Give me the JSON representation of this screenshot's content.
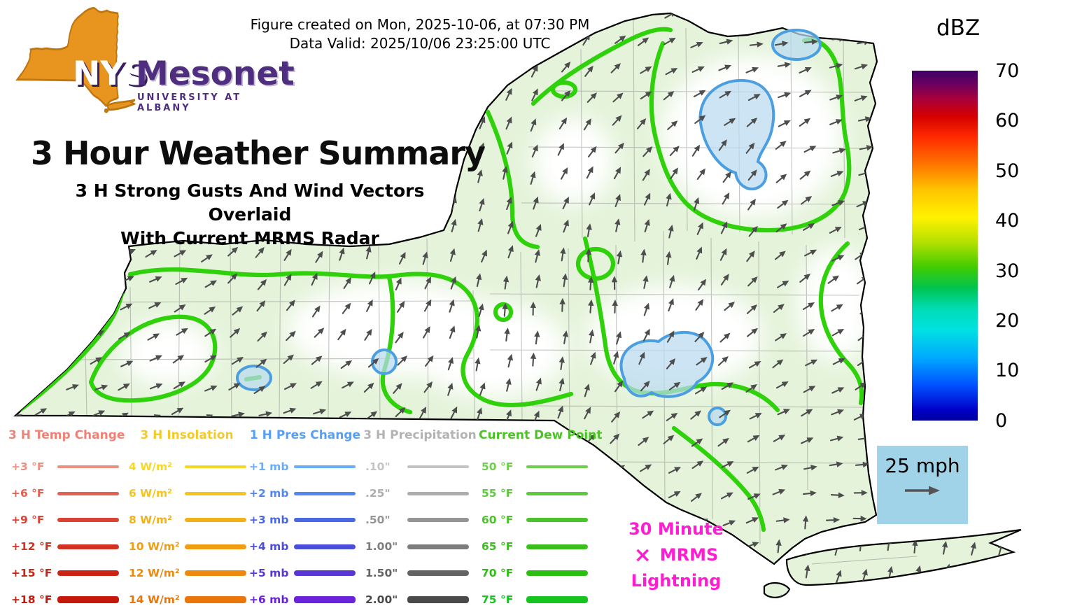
{
  "header": {
    "created": "Figure created on Mon, 2025-10-06, at 07:30 PM",
    "valid": "Data Valid: 2025/10/06 23:25:00 UTC"
  },
  "logo": {
    "acronym": "NYS",
    "acronym_color": "#ffffff",
    "name": "Mesonet",
    "affiliation": "UNIVERSITY AT ALBANY",
    "state_color": "#E8951F",
    "state_stroke": "#BE7710",
    "text_color": "#4F2D7F"
  },
  "titles": {
    "main": "3 Hour Weather Summary",
    "sub1": "3 H Strong Gusts And Wind Vectors Overlaid",
    "sub2": "With Current MRMS Radar"
  },
  "colorbar": {
    "label": "dBZ",
    "ticks": [
      "70",
      "60",
      "50",
      "40",
      "30",
      "20",
      "10",
      "0"
    ],
    "stops_top_to_bottom": [
      "#3d0066 0%",
      "#6e0060 4%",
      "#a8003c 8%",
      "#d40000 13%",
      "#ff2a00 19%",
      "#ff7700 27%",
      "#ffc400 34%",
      "#fff200 42%",
      "#b5e000 49%",
      "#44cc00 56%",
      "#00c44e 62%",
      "#00dcb4 68%",
      "#00e1e1 74%",
      "#00aaff 82%",
      "#0050ff 90%",
      "#0000c8 97%",
      "#0000a0 100%"
    ]
  },
  "wind_ref": {
    "label": "25 mph",
    "box_color": "#a0d2e8"
  },
  "lightning": {
    "line1": "30 Minute",
    "symbol": "×",
    "line2": "MRMS",
    "line3": "Lightning",
    "color": "#ff1dd1"
  },
  "legend": {
    "columns": [
      {
        "title": "3 H Temp Change",
        "title_color": "#EF8276",
        "items": [
          {
            "label": "+3 °F",
            "color": "#EE8E80"
          },
          {
            "label": "+6 °F",
            "color": "#E4604F"
          },
          {
            "label": "+9 °F",
            "color": "#DA4233"
          },
          {
            "label": "+12 °F",
            "color": "#D23222"
          },
          {
            "label": "+15 °F",
            "color": "#CB2415"
          },
          {
            "label": "+18 °F",
            "color": "#C6180A"
          }
        ]
      },
      {
        "title": "3 H Insolation",
        "title_color": "#F3CA2A",
        "items": [
          {
            "label": "4 W/m²",
            "color": "#F8D822"
          },
          {
            "label": "6 W/m²",
            "color": "#F5C41D"
          },
          {
            "label": "8 W/m²",
            "color": "#F2B118"
          },
          {
            "label": "10 W/m²",
            "color": "#F09D13"
          },
          {
            "label": "12 W/m²",
            "color": "#ED8A0E"
          },
          {
            "label": "14 W/m²",
            "color": "#EA7609"
          }
        ]
      },
      {
        "title": "1 H Pres Change",
        "title_color": "#55A0F5",
        "items": [
          {
            "label": "+1 mb",
            "color": "#66AEFA"
          },
          {
            "label": "+2 mb",
            "color": "#5188F0"
          },
          {
            "label": "+3 mb",
            "color": "#4B68E4"
          },
          {
            "label": "+4 mb",
            "color": "#4B4ED9"
          },
          {
            "label": "+5 mb",
            "color": "#5A36D4"
          },
          {
            "label": "+6 mb",
            "color": "#6A22DA"
          }
        ]
      },
      {
        "title": "3 H Precipitation",
        "title_color": "#B3B3B3",
        "items": [
          {
            "label": ".10\"",
            "color": "#C4C4C4"
          },
          {
            "label": ".25\"",
            "color": "#ADADAD"
          },
          {
            "label": ".50\"",
            "color": "#959595"
          },
          {
            "label": "1.00\"",
            "color": "#7D7D7D"
          },
          {
            "label": "1.50\"",
            "color": "#646464"
          },
          {
            "label": "2.00\"",
            "color": "#4A4A4A"
          }
        ]
      },
      {
        "title": "Current Dew Point",
        "title_color": "#4CC226",
        "items": [
          {
            "label": "50 °F",
            "color": "#6ED04C"
          },
          {
            "label": "55 °F",
            "color": "#5CCA3A"
          },
          {
            "label": "60 °F",
            "color": "#4AC42A"
          },
          {
            "label": "65 °F",
            "color": "#3BBF1C"
          },
          {
            "label": "70 °F",
            "color": "#2CBE12"
          },
          {
            "label": "75 °F",
            "color": "#16C41E"
          }
        ]
      }
    ]
  },
  "map": {
    "land_fill": "#E4F3DA",
    "no_echo_fill": "#FFFFFF",
    "border_color": "#000000",
    "county_line_color": "#8A8A8A",
    "dewpoint_contour_color": "#2FD20A",
    "radar_fill": "#B9D9EE",
    "radar_stroke": "#4B9FE0",
    "wind_arrow_color": "#4D4D4D"
  }
}
